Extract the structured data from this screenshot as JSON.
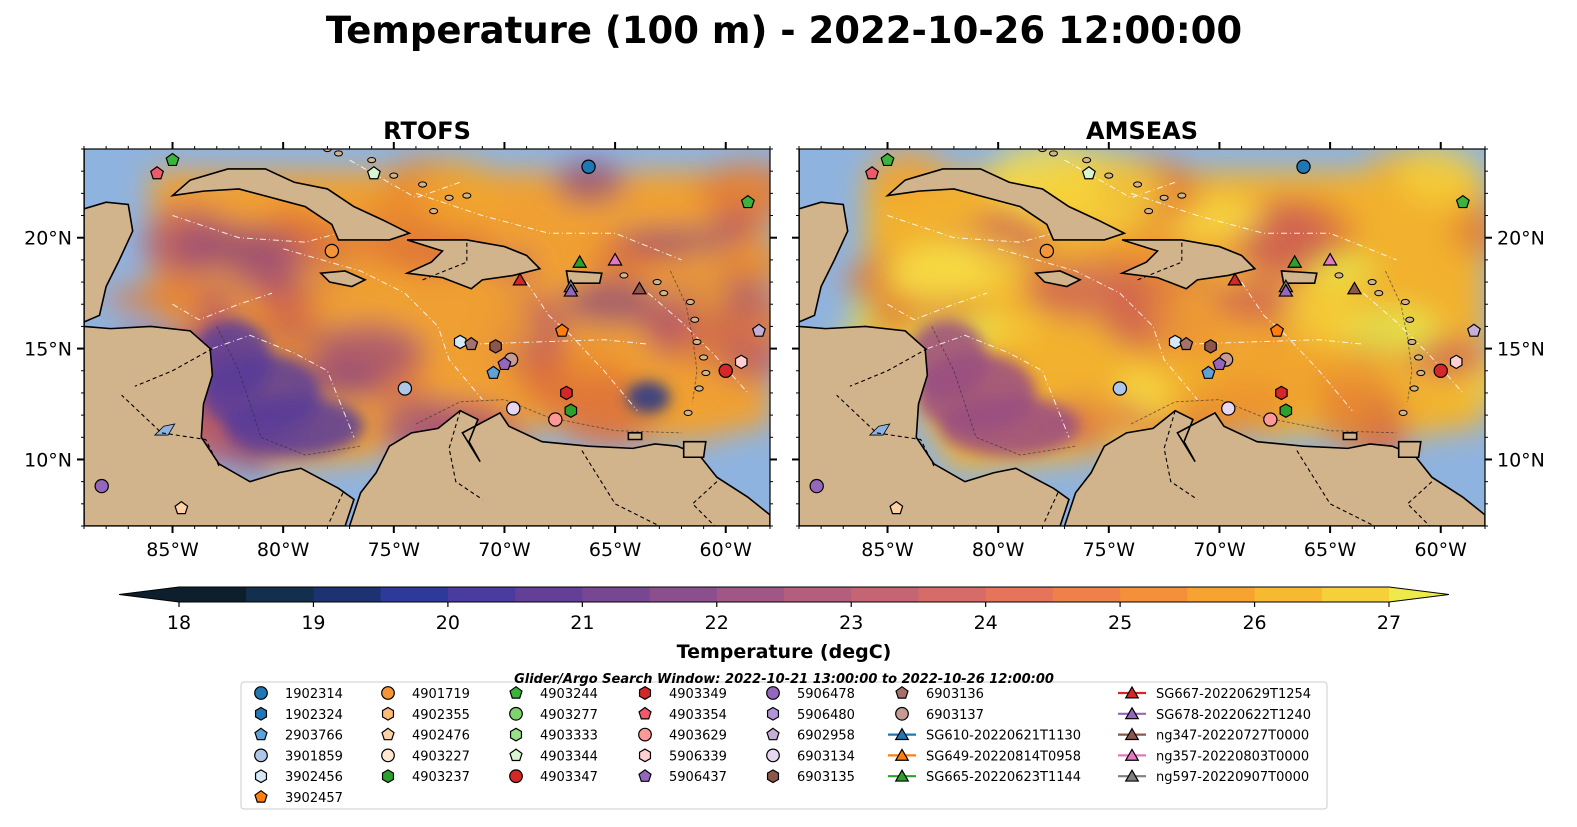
{
  "title": "Temperature (100 m) - 2022-10-26 12:00:00",
  "maps": [
    {
      "name": "RTOFS",
      "field_colors": [
        "#f0a030",
        "#e8882f",
        "#d96a3e",
        "#b5566a",
        "#8c4a7e",
        "#f2a52c",
        "#e07838",
        "#a04f7a"
      ],
      "deep_patch": true
    },
    {
      "name": "AMSEAS",
      "field_colors": [
        "#f2b12e",
        "#e98b30",
        "#f6d23a",
        "#e2f050",
        "#c95a58",
        "#f0a030",
        "#dd7a3a",
        "#f7e045"
      ],
      "deep_patch": false
    }
  ],
  "map_extent": {
    "lon": [
      -89,
      -58
    ],
    "lat": [
      7,
      24
    ]
  },
  "lon_ticks": [
    "85°W",
    "80°W",
    "75°W",
    "70°W",
    "65°W",
    "60°W"
  ],
  "lon_values": [
    -85,
    -80,
    -75,
    -70,
    -65,
    -60
  ],
  "lat_ticks": [
    "20°N",
    "15°N",
    "10°N"
  ],
  "lat_values": [
    20,
    15,
    10
  ],
  "colorbar": {
    "label": "Temperature (degC)",
    "ticks": [
      "18",
      "19",
      "20",
      "21",
      "22",
      "23",
      "24",
      "25",
      "26",
      "27"
    ],
    "min": 18,
    "max": 27,
    "colors": [
      "#0d1f2d",
      "#12304d",
      "#1d3270",
      "#2d3a9a",
      "#4a3b9e",
      "#633f97",
      "#774792",
      "#8c4f8e",
      "#a05786",
      "#b45e7e",
      "#c56574",
      "#d66b68",
      "#e5745a",
      "#ee8049",
      "#f48f3a",
      "#f6a331",
      "#f6b92f",
      "#f5d03a",
      "#eeea4a"
    ]
  },
  "legend_subtitle": "Glider/Argo Search Window: 2022-10-21 13:00:00 to 2022-10-26 12:00:00",
  "legend_columns": [
    [
      {
        "label": "1902314",
        "marker": "circle",
        "color": "#1f77b4"
      },
      {
        "label": "1902324",
        "marker": "hexagon",
        "color": "#1f77b4"
      },
      {
        "label": "2903766",
        "marker": "pentagon",
        "color": "#5fa2d6"
      },
      {
        "label": "3901859",
        "marker": "circle",
        "color": "#aec7e8"
      },
      {
        "label": "3902456",
        "marker": "hexagon",
        "color": "#d4e8f7"
      },
      {
        "label": "3902457",
        "marker": "pentagon",
        "color": "#ff7f0e"
      }
    ],
    [
      {
        "label": "4901719",
        "marker": "circle",
        "color": "#f5953a"
      },
      {
        "label": "4902355",
        "marker": "hexagon",
        "color": "#ffbb78"
      },
      {
        "label": "4902476",
        "marker": "pentagon",
        "color": "#ffd2a6"
      },
      {
        "label": "4903227",
        "marker": "circle",
        "color": "#ffe8cf"
      },
      {
        "label": "4903237",
        "marker": "hexagon",
        "color": "#2ca02c"
      }
    ],
    [
      {
        "label": "4903244",
        "marker": "pentagon",
        "color": "#3cb33c"
      },
      {
        "label": "4903277",
        "marker": "circle",
        "color": "#7fd36e"
      },
      {
        "label": "4903333",
        "marker": "hexagon",
        "color": "#98df8a"
      },
      {
        "label": "4903344",
        "marker": "pentagon",
        "color": "#d8f5cf"
      },
      {
        "label": "4903347",
        "marker": "circle",
        "color": "#d62728"
      }
    ],
    [
      {
        "label": "4903349",
        "marker": "hexagon",
        "color": "#d62728"
      },
      {
        "label": "4903354",
        "marker": "pentagon",
        "color": "#ef5a6a"
      },
      {
        "label": "4903629",
        "marker": "circle",
        "color": "#ff9896"
      },
      {
        "label": "5906339",
        "marker": "hexagon",
        "color": "#ffd0cf"
      },
      {
        "label": "5906437",
        "marker": "pentagon",
        "color": "#9467bd"
      }
    ],
    [
      {
        "label": "5906478",
        "marker": "circle",
        "color": "#9467bd"
      },
      {
        "label": "5906480",
        "marker": "hexagon",
        "color": "#b294d6"
      },
      {
        "label": "6902958",
        "marker": "pentagon",
        "color": "#c5b0d5"
      },
      {
        "label": "6903134",
        "marker": "circle",
        "color": "#e6d6f2"
      },
      {
        "label": "6903135",
        "marker": "hexagon",
        "color": "#8c564b"
      }
    ],
    [
      {
        "label": "6903136",
        "marker": "pentagon",
        "color": "#a4726a"
      },
      {
        "label": "6903137",
        "marker": "circle",
        "color": "#c49c94"
      },
      {
        "label": "SG610-20220621T1130",
        "marker": "triangle",
        "color": "#1f77b4"
      },
      {
        "label": "SG649-20220814T0958",
        "marker": "triangle",
        "color": "#ff7f0e"
      },
      {
        "label": "SG665-20220623T1144",
        "marker": "triangle",
        "color": "#2ca02c"
      }
    ],
    [
      {
        "label": "SG667-20220629T1254",
        "marker": "triangle",
        "color": "#d62728"
      },
      {
        "label": "SG678-20220622T1240",
        "marker": "triangle",
        "color": "#9467bd"
      },
      {
        "label": "ng347-20220727T0000",
        "marker": "triangle",
        "color": "#8c564b"
      },
      {
        "label": "ng357-20220803T0000",
        "marker": "triangle",
        "color": "#e377c2"
      },
      {
        "label": "ng597-20220907T0000",
        "marker": "triangle",
        "color": "#7f7f7f"
      }
    ]
  ],
  "platforms": [
    {
      "marker": "circle",
      "color": "#1f77b4",
      "lon": -66.2,
      "lat": 23.2
    },
    {
      "marker": "circle",
      "color": "#f5953a",
      "lon": -77.8,
      "lat": 19.4
    },
    {
      "marker": "circle",
      "color": "#aec7e8",
      "lon": -74.5,
      "lat": 13.2
    },
    {
      "marker": "circle",
      "color": "#9467bd",
      "lon": -88.2,
      "lat": 8.8
    },
    {
      "marker": "circle",
      "color": "#d62728",
      "lon": -60.0,
      "lat": 14.0
    },
    {
      "marker": "circle",
      "color": "#ff9896",
      "lon": -67.7,
      "lat": 11.8
    },
    {
      "marker": "circle",
      "color": "#e6d6f2",
      "lon": -69.6,
      "lat": 12.3
    },
    {
      "marker": "circle",
      "color": "#c49c94",
      "lon": -69.7,
      "lat": 14.5
    },
    {
      "marker": "hexagon",
      "color": "#8c564b",
      "lon": -70.4,
      "lat": 15.1
    },
    {
      "marker": "hexagon",
      "color": "#d4e8f7",
      "lon": -72.0,
      "lat": 15.3
    },
    {
      "marker": "hexagon",
      "color": "#ffd0cf",
      "lon": -59.3,
      "lat": 14.4
    },
    {
      "marker": "hexagon",
      "color": "#d62728",
      "lon": -67.2,
      "lat": 13.0
    },
    {
      "marker": "hexagon",
      "color": "#2ca02c",
      "lon": -67.0,
      "lat": 12.2
    },
    {
      "marker": "pentagon",
      "color": "#3cb33c",
      "lon": -85.0,
      "lat": 23.5
    },
    {
      "marker": "pentagon",
      "color": "#3cb33c",
      "lon": -59.0,
      "lat": 21.6
    },
    {
      "marker": "pentagon",
      "color": "#ef5a6a",
      "lon": -85.7,
      "lat": 22.9
    },
    {
      "marker": "pentagon",
      "color": "#d8f5cf",
      "lon": -75.9,
      "lat": 22.9
    },
    {
      "marker": "pentagon",
      "color": "#ff7f0e",
      "lon": -67.4,
      "lat": 15.8
    },
    {
      "marker": "pentagon",
      "color": "#5fa2d6",
      "lon": -70.5,
      "lat": 13.9
    },
    {
      "marker": "pentagon",
      "color": "#a4726a",
      "lon": -71.5,
      "lat": 15.2
    },
    {
      "marker": "pentagon",
      "color": "#c5b0d5",
      "lon": -58.5,
      "lat": 15.8
    },
    {
      "marker": "pentagon",
      "color": "#ffd2a6",
      "lon": -84.6,
      "lat": 7.8
    },
    {
      "marker": "pentagon",
      "color": "#9467bd",
      "lon": -70.0,
      "lat": 14.3
    },
    {
      "marker": "triangle",
      "color": "#2ca02c",
      "lon": -66.6,
      "lat": 18.9
    },
    {
      "marker": "triangle",
      "color": "#d62728",
      "lon": -69.3,
      "lat": 18.1
    },
    {
      "marker": "triangle",
      "color": "#e377c2",
      "lon": -65.0,
      "lat": 19.0
    },
    {
      "marker": "triangle",
      "color": "#8c564b",
      "lon": -63.9,
      "lat": 17.7
    },
    {
      "marker": "triangle",
      "color": "#7f7f7f",
      "lon": -67.0,
      "lat": 17.8
    },
    {
      "marker": "triangle",
      "color": "#9467bd",
      "lon": -67.0,
      "lat": 17.6
    }
  ]
}
